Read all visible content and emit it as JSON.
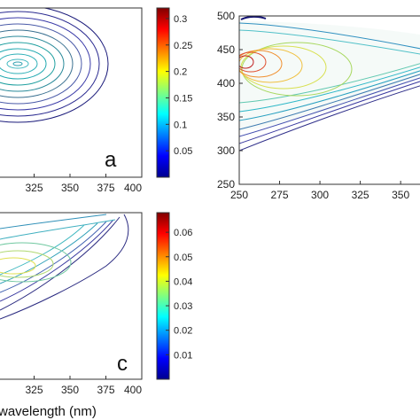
{
  "chart_data": [
    {
      "type": "heatmap",
      "panel_label": "a",
      "xticks": [
        325,
        350,
        375,
        400
      ],
      "xlim": [
        300,
        400
      ],
      "grid": false
    },
    {
      "type": "heatmap",
      "yticks": [
        250,
        300,
        350,
        400,
        450,
        500
      ],
      "ylim": [
        250,
        500
      ],
      "xticks": [
        250,
        275,
        300,
        325,
        350
      ],
      "xlim": [
        250,
        362
      ],
      "grid": false
    },
    {
      "type": "heatmap",
      "panel_label": "c",
      "xticks": [
        325,
        350,
        375,
        400
      ],
      "xlim": [
        300,
        400
      ],
      "xlabel": "wavelength (nm)",
      "grid": false
    }
  ],
  "colorbars": [
    {
      "ticks": [
        "0.3",
        "0.25",
        "0.2",
        "0.15",
        "0.1",
        "0.05"
      ],
      "values": [
        0.3,
        0.25,
        0.2,
        0.15,
        0.1,
        0.05
      ],
      "range": [
        0,
        0.32
      ]
    },
    {
      "ticks": [
        "0.06",
        "0.05",
        "0.04",
        "0.03",
        "0.02",
        "0.01"
      ],
      "values": [
        0.06,
        0.05,
        0.04,
        0.03,
        0.02,
        0.01
      ],
      "range": [
        0,
        0.068
      ]
    }
  ],
  "colormap": [
    "#00008f",
    "#0000ff",
    "#0080ff",
    "#00ffff",
    "#80ff80",
    "#ffff00",
    "#ff8000",
    "#ff0000",
    "#800000"
  ]
}
